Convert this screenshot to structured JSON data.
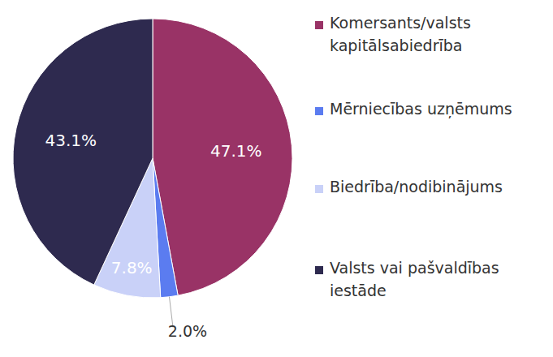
{
  "chart_data": {
    "type": "pie",
    "categories": [
      "Komersants/valsts kapitālsabiedrība",
      "Mērniecības uzņēmums",
      "Biedrība/nodibinājums",
      "Valsts vai pašvaldības iestāde"
    ],
    "values": [
      47.1,
      2.0,
      7.8,
      43.1
    ],
    "value_labels": [
      "47.1%",
      "2.0%",
      "7.8%",
      "43.1%"
    ],
    "colors": [
      "#993366",
      "#5b7cf0",
      "#c9d1f8",
      "#2e2a4f"
    ],
    "data_labels": true,
    "legend": "right"
  }
}
